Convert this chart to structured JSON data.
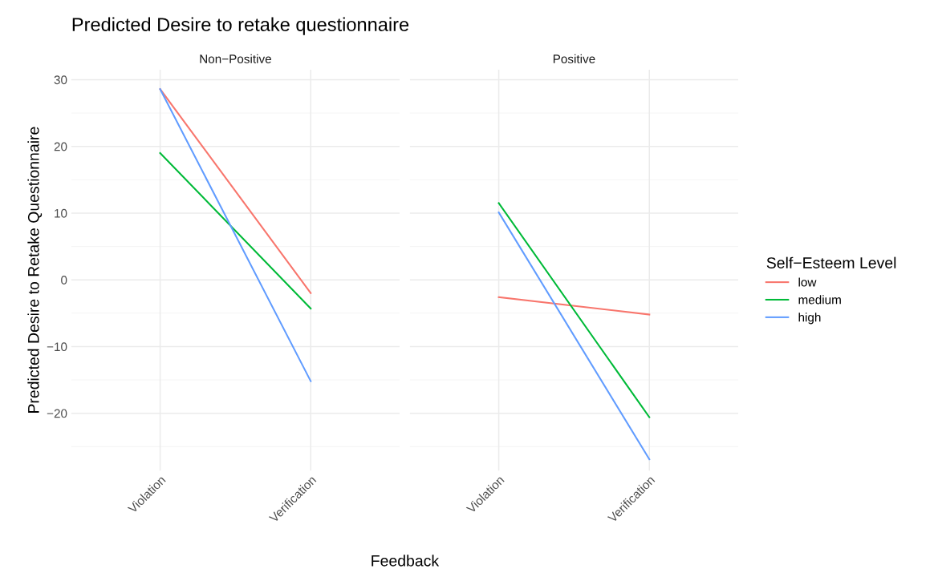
{
  "chart_data": [
    {
      "type": "line",
      "title": "Predicted Desire to retake questionnaire",
      "subtitle": "Non−Positive",
      "xlabel": "Feedback",
      "ylabel": "Predicted Desire to Retake Questionnaire",
      "legend_title": "Self−Esteem Level",
      "legend": "right",
      "grid": true,
      "categories": [
        "Violation",
        "Verification"
      ],
      "ylim": [
        -28.6,
        31.5
      ],
      "yticks": [
        -20,
        -10,
        0,
        10,
        20,
        30
      ],
      "series": [
        {
          "name": "low",
          "color": "#f8766d",
          "values": [
            28.6,
            -2.0
          ]
        },
        {
          "name": "medium",
          "color": "#00ba38",
          "values": [
            19.0,
            -4.3
          ]
        },
        {
          "name": "high",
          "color": "#619cff",
          "values": [
            28.6,
            -15.2
          ]
        }
      ]
    },
    {
      "type": "line",
      "subtitle": "Positive",
      "grid": true,
      "tick_labels": "x",
      "categories": [
        "Violation",
        "Verification"
      ],
      "ylim": [
        -28.6,
        31.5
      ],
      "yticks": [
        -20,
        -10,
        0,
        10,
        20,
        30
      ],
      "series": [
        {
          "color": "#f8766d",
          "values": [
            -2.6,
            -5.2
          ]
        },
        {
          "color": "#00ba38",
          "values": [
            11.5,
            -20.6
          ]
        },
        {
          "color": "#619cff",
          "values": [
            10.1,
            -26.9
          ]
        }
      ]
    }
  ]
}
